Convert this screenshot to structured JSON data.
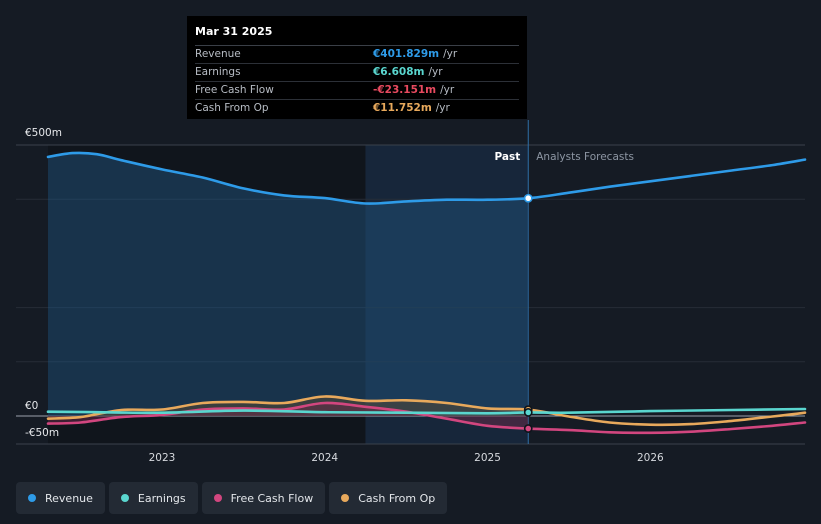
{
  "chart_data": {
    "type": "area",
    "currency_prefix": "€",
    "y_unit": "m",
    "ylim": [
      -50,
      500
    ],
    "y_ticks": [
      {
        "value": 500,
        "label": "€500m"
      },
      {
        "value": 0,
        "label": "€0"
      },
      {
        "value": -50,
        "label": "-€50m"
      }
    ],
    "xlim": [
      2022.3,
      2026.95
    ],
    "x_ticks": [
      {
        "value": 2023,
        "label": "2023"
      },
      {
        "value": 2024,
        "label": "2024"
      },
      {
        "value": 2025,
        "label": "2025"
      },
      {
        "value": 2026,
        "label": "2026"
      }
    ],
    "highlight_start": 2024.25,
    "divider_x": 2025.25,
    "past_label": "Past",
    "forecast_label": "Analysts Forecasts",
    "series": [
      {
        "name": "Revenue",
        "color": "#2e9be8",
        "fill": true,
        "points": [
          [
            2022.3,
            478
          ],
          [
            2022.45,
            485
          ],
          [
            2022.6,
            483
          ],
          [
            2022.75,
            472
          ],
          [
            2023.0,
            455
          ],
          [
            2023.25,
            440
          ],
          [
            2023.5,
            420
          ],
          [
            2023.75,
            407
          ],
          [
            2024.0,
            402
          ],
          [
            2024.25,
            392
          ],
          [
            2024.5,
            396
          ],
          [
            2024.75,
            399
          ],
          [
            2025.0,
            399
          ],
          [
            2025.25,
            401.8
          ],
          [
            2025.5,
            412
          ],
          [
            2025.75,
            423
          ],
          [
            2026.0,
            433
          ],
          [
            2026.25,
            443
          ],
          [
            2026.5,
            453
          ],
          [
            2026.75,
            463
          ],
          [
            2026.95,
            473
          ]
        ]
      },
      {
        "name": "Earnings",
        "color": "#5ad6cf",
        "fill": false,
        "points": [
          [
            2022.3,
            8
          ],
          [
            2022.6,
            7
          ],
          [
            2023.0,
            6
          ],
          [
            2023.5,
            10
          ],
          [
            2024.0,
            7
          ],
          [
            2024.5,
            6
          ],
          [
            2025.0,
            5
          ],
          [
            2025.25,
            6.6
          ],
          [
            2025.5,
            6
          ],
          [
            2026.0,
            9
          ],
          [
            2026.5,
            11
          ],
          [
            2026.95,
            13
          ]
        ]
      },
      {
        "name": "Free Cash Flow",
        "color": "#d2467f",
        "fill": true,
        "points": [
          [
            2022.3,
            -14
          ],
          [
            2022.5,
            -12
          ],
          [
            2022.75,
            -2
          ],
          [
            2023.0,
            2
          ],
          [
            2023.25,
            12
          ],
          [
            2023.5,
            14
          ],
          [
            2023.75,
            12
          ],
          [
            2024.0,
            24
          ],
          [
            2024.25,
            17
          ],
          [
            2024.5,
            8
          ],
          [
            2024.75,
            -5
          ],
          [
            2025.0,
            -18
          ],
          [
            2025.25,
            -23.2
          ],
          [
            2025.5,
            -26
          ],
          [
            2025.75,
            -30
          ],
          [
            2026.0,
            -31
          ],
          [
            2026.25,
            -29
          ],
          [
            2026.5,
            -24
          ],
          [
            2026.75,
            -18
          ],
          [
            2026.95,
            -12
          ]
        ]
      },
      {
        "name": "Cash From Op",
        "color": "#e8a95c",
        "fill": true,
        "points": [
          [
            2022.3,
            -5
          ],
          [
            2022.5,
            -2
          ],
          [
            2022.75,
            11
          ],
          [
            2023.0,
            12
          ],
          [
            2023.25,
            24
          ],
          [
            2023.5,
            26
          ],
          [
            2023.75,
            24
          ],
          [
            2024.0,
            36
          ],
          [
            2024.25,
            28
          ],
          [
            2024.5,
            29
          ],
          [
            2024.75,
            24
          ],
          [
            2025.0,
            14
          ],
          [
            2025.25,
            11.75
          ],
          [
            2025.5,
            -1
          ],
          [
            2025.75,
            -12
          ],
          [
            2026.0,
            -16
          ],
          [
            2026.25,
            -15
          ],
          [
            2026.5,
            -9
          ],
          [
            2026.75,
            -1
          ],
          [
            2026.95,
            6
          ]
        ]
      }
    ]
  },
  "tooltip": {
    "date": "Mar 31 2025",
    "rows": [
      {
        "label": "Revenue",
        "value": "€401.829m",
        "unit": "/yr",
        "color": "#2e9be8"
      },
      {
        "label": "Earnings",
        "value": "€6.608m",
        "unit": "/yr",
        "color": "#5ad6cf"
      },
      {
        "label": "Free Cash Flow",
        "value": "-€23.151m",
        "unit": "/yr",
        "color": "#e84a5f"
      },
      {
        "label": "Cash From Op",
        "value": "€11.752m",
        "unit": "/yr",
        "color": "#e8a95c"
      }
    ]
  },
  "legend": {
    "items": [
      {
        "label": "Revenue",
        "color": "#2e9be8"
      },
      {
        "label": "Earnings",
        "color": "#5ad6cf"
      },
      {
        "label": "Free Cash Flow",
        "color": "#d2467f"
      },
      {
        "label": "Cash From Op",
        "color": "#e8a95c"
      }
    ]
  }
}
